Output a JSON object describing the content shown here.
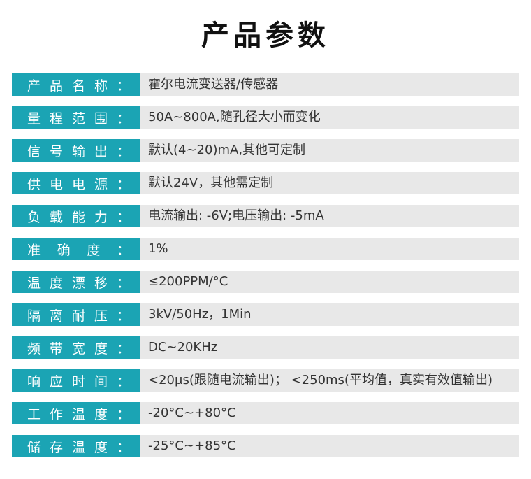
{
  "title": "产品参数",
  "rows": [
    {
      "label": [
        "产",
        "品",
        "名",
        "称",
        "："
      ],
      "value": "霍尔电流变送器/传感器"
    },
    {
      "label": [
        "量",
        "程",
        "范",
        "围",
        "："
      ],
      "value": "50A~800A,随孔径大小而变化"
    },
    {
      "label": [
        "信",
        "号",
        "输",
        "出",
        "："
      ],
      "value": "默认(4~20)mA,其他可定制"
    },
    {
      "label": [
        "供",
        "电",
        "电",
        "源",
        "："
      ],
      "value": "默认24V，其他需定制"
    },
    {
      "label": [
        "负",
        "载",
        "能",
        "力",
        "："
      ],
      "value": "电流输出: -6V;电压输出: -5mA"
    },
    {
      "label": [
        "准",
        "确",
        "度",
        "："
      ],
      "value": "1%"
    },
    {
      "label": [
        "温",
        "度",
        "漂",
        "移",
        "："
      ],
      "value": "≤200PPM/°C"
    },
    {
      "label": [
        "隔",
        "离",
        "耐",
        "压",
        "："
      ],
      "value": "3kV/50Hz，1Min"
    },
    {
      "label": [
        "频",
        "带",
        "宽",
        "度",
        "："
      ],
      "value": "DC~20KHz"
    },
    {
      "label": [
        "响",
        "应",
        "时",
        "间",
        "："
      ],
      "value": "<20μs(跟随电流输出)； <250ms(平均值，真实有效值输出)"
    },
    {
      "label": [
        "工",
        "作",
        "温",
        "度",
        "："
      ],
      "value": "-20°C~+80°C"
    },
    {
      "label": [
        "储",
        "存",
        "温",
        "度",
        "："
      ],
      "value": "-25°C~+85°C"
    }
  ],
  "colors": {
    "label_bg": "#1ba4b4",
    "value_bg": "#e8e8e8"
  }
}
